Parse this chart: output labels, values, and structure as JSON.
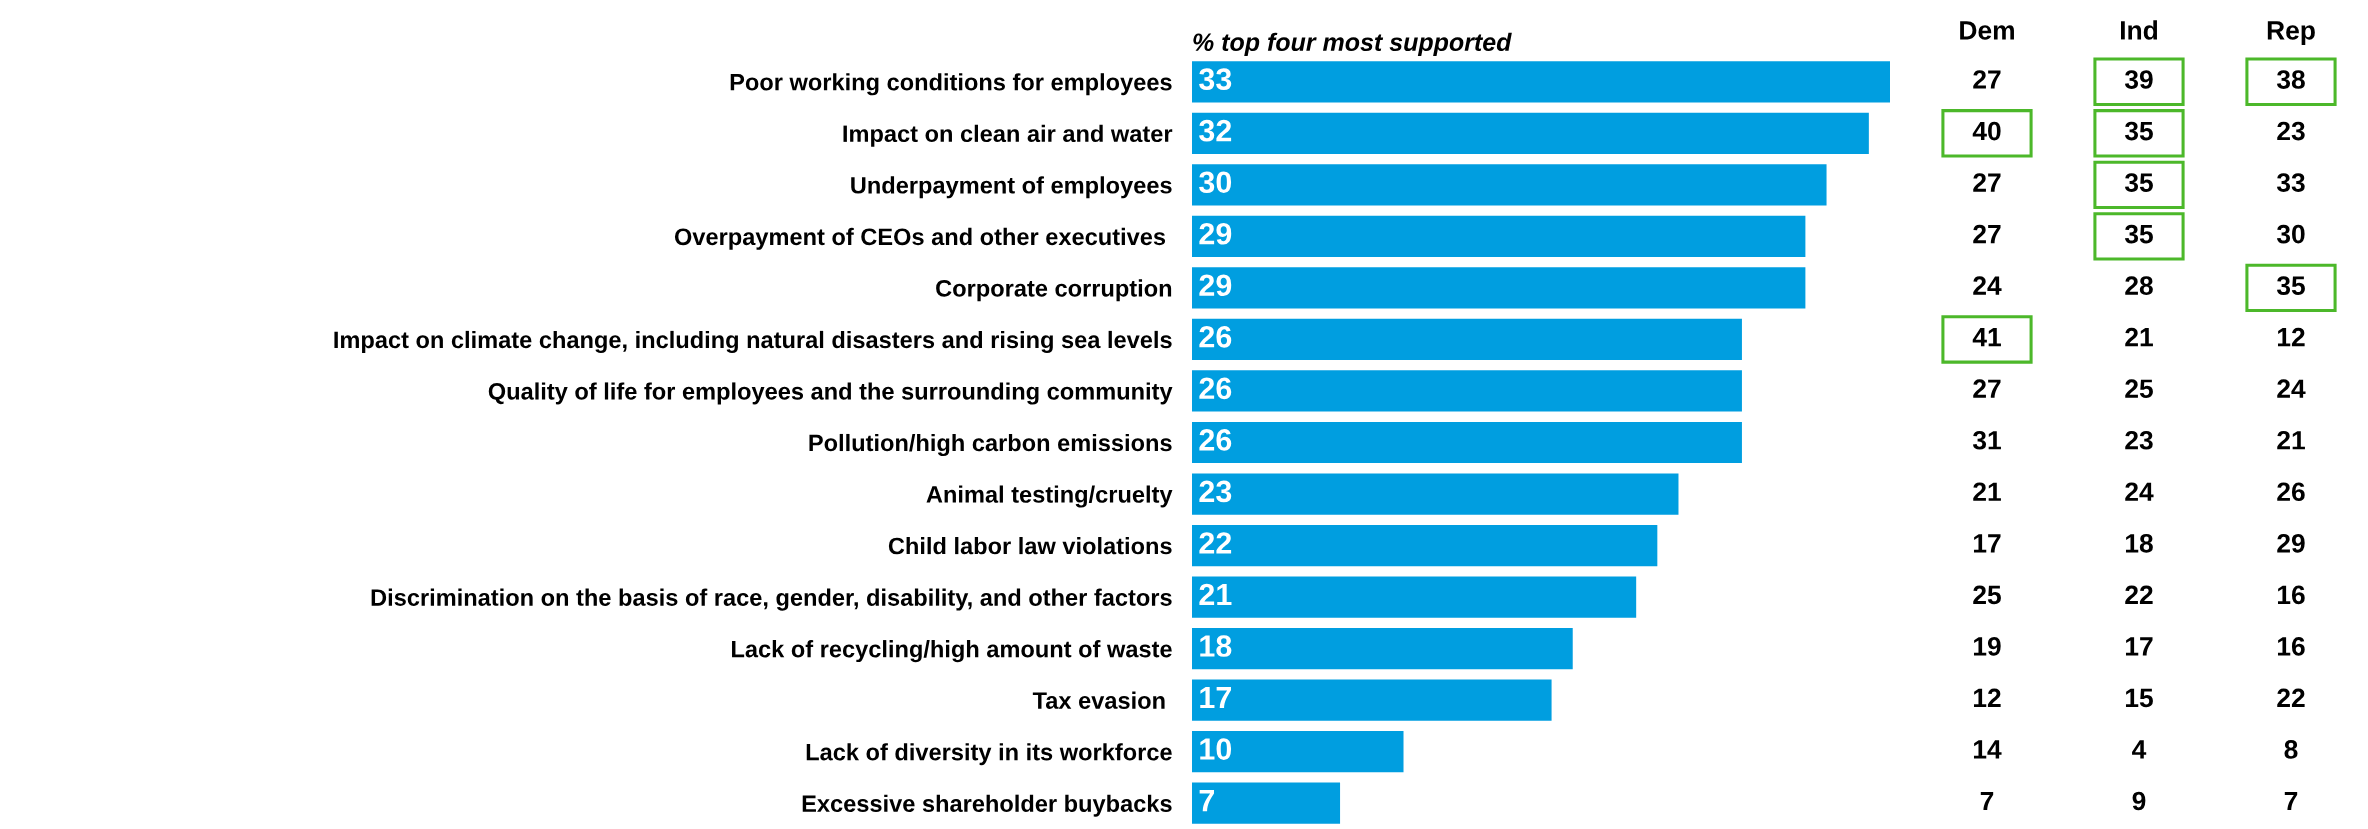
{
  "chart_data": [
    {
      "type": "bar",
      "orientation": "horizontal",
      "title": "% top four most supported",
      "categories": [
        "Poor working conditions for employees",
        "Impact on clean air and water",
        "Underpayment of employees",
        "Overpayment of CEOs and other executives ",
        "Corporate corruption",
        "Impact on climate change, including natural disasters and rising sea levels",
        "Quality of life for employees and the surrounding community",
        "Pollution/high carbon emissions",
        "Animal testing/cruelty",
        "Child labor law violations",
        "Discrimination on the basis of race, gender, disability, and other factors",
        "Lack of recycling/high amount of waste",
        "Tax evasion ",
        "Lack of diversity in its workforce",
        "Excessive shareholder buybacks"
      ],
      "values": [
        33,
        32,
        30,
        29,
        29,
        26,
        26,
        26,
        23,
        22,
        21,
        18,
        17,
        10,
        7
      ],
      "color": "#009ee0",
      "data_labels": true
    },
    {
      "type": "heatmap",
      "categories": [
        "Dem",
        "Ind",
        "Rep"
      ],
      "y_categories": [
        null,
        null,
        null,
        null,
        null,
        null,
        null,
        null,
        null,
        null,
        null,
        null,
        null,
        null,
        null
      ],
      "tick_labels": "x",
      "data_labels": true,
      "cells": [
        [
          27,
          39,
          38
        ],
        [
          40,
          35,
          23
        ],
        [
          27,
          35,
          33
        ],
        [
          27,
          35,
          30
        ],
        [
          24,
          28,
          35
        ],
        [
          41,
          21,
          12
        ],
        [
          27,
          25,
          24
        ],
        [
          31,
          23,
          21
        ],
        [
          21,
          24,
          26
        ],
        [
          17,
          18,
          29
        ],
        [
          25,
          22,
          16
        ],
        [
          19,
          17,
          16
        ],
        [
          12,
          15,
          22
        ],
        [
          14,
          4,
          8
        ],
        [
          7,
          9,
          7
        ]
      ],
      "colors": [
        [
          null,
          "#4cb82a",
          "#4cb82a"
        ],
        [
          "#4cb82a",
          "#4cb82a",
          null
        ],
        [
          null,
          "#4cb82a",
          null
        ],
        [
          null,
          "#4cb82a",
          null
        ],
        [
          null,
          null,
          "#4cb82a"
        ],
        [
          "#4cb82a",
          null,
          null
        ],
        [
          null,
          null,
          null
        ],
        [
          null,
          null,
          null
        ],
        [
          null,
          null,
          null
        ],
        [
          null,
          null,
          null
        ],
        [
          null,
          null,
          null
        ],
        [
          null,
          null,
          null
        ],
        [
          null,
          null,
          null
        ],
        [
          null,
          null,
          null
        ],
        [
          null,
          null,
          null
        ]
      ]
    }
  ]
}
